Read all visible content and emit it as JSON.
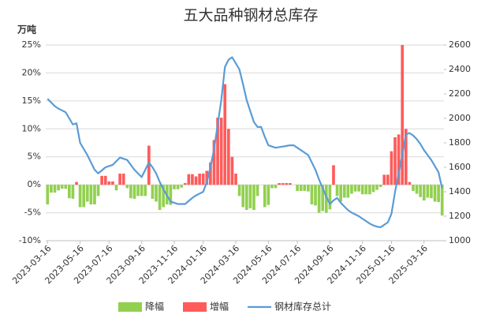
{
  "chart_data": {
    "type": "bar_line",
    "title": "五大品种钢材总库存",
    "ylabel": "万吨",
    "categories": [
      "2023-03-16",
      null,
      null,
      null,
      null,
      null,
      null,
      null,
      null,
      "2023-05-16",
      null,
      null,
      null,
      null,
      null,
      null,
      null,
      "2023-07-16",
      null,
      null,
      null,
      null,
      null,
      null,
      null,
      null,
      "2023-09-16",
      null,
      null,
      null,
      null,
      null,
      null,
      null,
      null,
      "2023-11-16",
      null,
      null,
      null,
      null,
      null,
      null,
      null,
      "2024-01-16",
      null,
      null,
      null,
      null,
      null,
      null,
      null,
      null,
      "2024-03-16",
      null,
      null,
      null,
      null,
      null,
      null,
      null,
      null,
      "2024-05-16",
      null,
      null,
      null,
      null,
      null,
      null,
      null,
      "2024-07-16",
      null,
      null,
      null,
      null,
      null,
      null,
      null,
      null,
      "2024-09-16",
      null,
      null,
      null,
      null,
      null,
      null,
      null,
      null,
      "2024-11-16",
      null,
      null,
      null,
      null,
      null,
      null,
      null,
      "2025-01-16",
      null,
      null,
      null,
      null,
      null,
      null,
      null,
      null,
      "2025-03-16",
      null,
      null,
      null,
      null,
      null
    ],
    "values": [
      -3.5,
      -1.4,
      -1.4,
      -1,
      -0.7,
      -0.7,
      -2.4,
      -2.5,
      0.5,
      -4,
      -4,
      -3,
      -3.5,
      -3.5,
      -2,
      1.6,
      1.6,
      0.6,
      0.6,
      -1,
      2,
      2,
      -0.6,
      -2.4,
      -2.5,
      -2,
      -2,
      -2,
      7,
      -2.5,
      -3,
      -4.5,
      -4,
      -3.5,
      -3.6,
      -0.8,
      -0.8,
      -0.5,
      0.3,
      1.9,
      1.9,
      1.5,
      2,
      2,
      2.5,
      4,
      8,
      12,
      12,
      18,
      10,
      5,
      2,
      -2,
      -4,
      -4.5,
      -4.2,
      -4.5,
      -2,
      0,
      -4,
      -3.6,
      -0.6,
      -0.6,
      0.3,
      0.3,
      0.3,
      0.3,
      0,
      -1.1,
      -1.1,
      -1.1,
      -1.2,
      -3.5,
      -3.7,
      -5,
      -4.7,
      -5,
      -4.4,
      3.5,
      -2,
      -3,
      -2.3,
      -2.3,
      -1.6,
      -1.2,
      -1.2,
      -1.7,
      -1.7,
      -1.7,
      -1.3,
      -0.9,
      -0.4,
      1.8,
      1.8,
      6,
      8.5,
      9,
      25,
      10,
      0.5,
      -1.1,
      -1.6,
      -2.2,
      -2.8,
      -2.3,
      -2.4,
      -3,
      -3.1,
      -5.5
    ],
    "bar_series": [
      {
        "name": "降幅",
        "color": "#92d050"
      },
      {
        "name": "增幅",
        "color": "#ff5b5b"
      }
    ],
    "line": {
      "name": "钢材库存总计",
      "color": "#5b9bd5",
      "axis": "y2",
      "values": [
        2160,
        2130,
        2100,
        2080,
        2065,
        2050,
        2000,
        1950,
        1960,
        1800,
        1750,
        1700,
        1640,
        1580,
        1550,
        1575,
        1600,
        1610,
        1620,
        1650,
        1680,
        1670,
        1660,
        1620,
        1580,
        1550,
        1520,
        1580,
        1640,
        1600,
        1550,
        1480,
        1420,
        1370,
        1320,
        1310,
        1300,
        1300,
        1300,
        1325,
        1350,
        1370,
        1385,
        1400,
        1480,
        1600,
        1750,
        1950,
        2150,
        2420,
        2480,
        2500,
        2450,
        2400,
        2280,
        2150,
        2060,
        1970,
        1930,
        1930,
        1850,
        1780,
        1770,
        1760,
        1765,
        1770,
        1775,
        1780,
        1780,
        1760,
        1740,
        1720,
        1700,
        1640,
        1580,
        1500,
        1430,
        1360,
        1300,
        1330,
        1350,
        1310,
        1280,
        1250,
        1230,
        1215,
        1200,
        1180,
        1160,
        1140,
        1125,
        1115,
        1110,
        1130,
        1150,
        1220,
        1400,
        1550,
        1700,
        1870,
        1880,
        1860,
        1830,
        1790,
        1740,
        1700,
        1660,
        1610,
        1560,
        1430
      ]
    },
    "ylim": [
      -10,
      25
    ],
    "yticks": [
      {
        "value": -10,
        "label": "-10%"
      },
      {
        "value": -5,
        "label": "-5%"
      },
      {
        "value": 0,
        "label": "0%"
      },
      {
        "value": 5,
        "label": "5%"
      },
      {
        "value": 10,
        "label": "10%"
      },
      {
        "value": 15,
        "label": "15%"
      },
      {
        "value": 20,
        "label": "20%"
      },
      {
        "value": 25,
        "label": "25%"
      }
    ],
    "y2lim": [
      1000,
      2600
    ],
    "y2ticks": [
      1000,
      1200,
      1400,
      1600,
      1800,
      2000,
      2200,
      2400,
      2600
    ],
    "grid": true
  }
}
